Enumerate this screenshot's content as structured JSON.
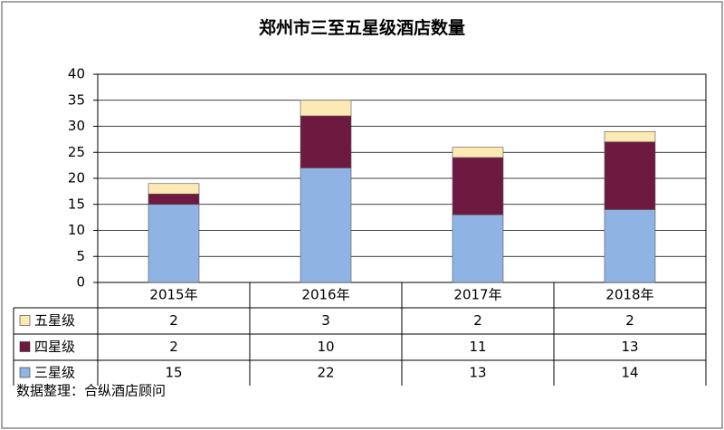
{
  "chart_data": {
    "type": "stacked-bar",
    "title": "郑州市三至五星级酒店数量",
    "categories": [
      "2015年",
      "2016年",
      "2017年",
      "2018年"
    ],
    "series": [
      {
        "name": "五星级",
        "color": "#fde9b4",
        "values": [
          2,
          3,
          2,
          2
        ]
      },
      {
        "name": "四星级",
        "color": "#6e1a40",
        "values": [
          2,
          10,
          11,
          13
        ]
      },
      {
        "name": "三星级",
        "color": "#8fb4e3",
        "values": [
          15,
          22,
          13,
          14
        ]
      }
    ],
    "ylim": [
      0,
      40
    ],
    "yticks": [
      0,
      5,
      10,
      15,
      20,
      25,
      30,
      35,
      40
    ],
    "grid": true,
    "note": "数据整理：合纵酒店顾问"
  }
}
